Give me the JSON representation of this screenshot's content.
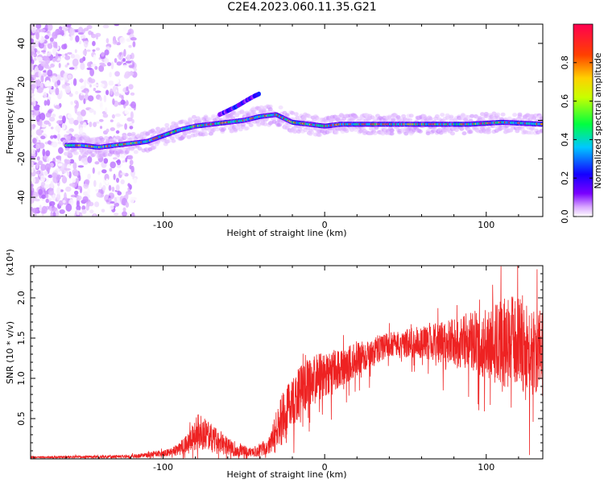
{
  "title": "C2E4.2023.060.11.35.G21",
  "chart_data": [
    {
      "type": "heatmap",
      "xlabel": "Height of straight line (km)",
      "ylabel": "Frequency (Hz)",
      "xlim": [
        -182,
        135
      ],
      "ylim": [
        -50,
        50
      ],
      "xticks": [
        -100,
        0,
        100
      ],
      "yticks": [
        -40,
        -20,
        0,
        20,
        40
      ],
      "colorbar": {
        "label": "Normalized spectral amplitude",
        "range": [
          0,
          1
        ],
        "ticks": [
          0.0,
          0.2,
          0.4,
          0.6,
          0.8
        ],
        "colors": [
          "#ffffff",
          "#d9a8ff",
          "#7a00ff",
          "#1400ff",
          "#00c8ff",
          "#00ff40",
          "#c8ff00",
          "#ffd000",
          "#ff4000",
          "#ff0050"
        ]
      },
      "trace": [
        {
          "x": -150,
          "y": -13
        },
        {
          "x": -140,
          "y": -14
        },
        {
          "x": -130,
          "y": -13
        },
        {
          "x": -120,
          "y": -12
        },
        {
          "x": -110,
          "y": -11
        },
        {
          "x": -100,
          "y": -8
        },
        {
          "x": -90,
          "y": -5
        },
        {
          "x": -80,
          "y": -3
        },
        {
          "x": -70,
          "y": -2
        },
        {
          "x": -60,
          "y": -1
        },
        {
          "x": -50,
          "y": 0
        },
        {
          "x": -40,
          "y": 2
        },
        {
          "x": -30,
          "y": 3
        },
        {
          "x": -20,
          "y": -1
        },
        {
          "x": -10,
          "y": -2
        },
        {
          "x": 0,
          "y": -3
        },
        {
          "x": 10,
          "y": -2
        },
        {
          "x": 30,
          "y": -2
        },
        {
          "x": 60,
          "y": -2
        },
        {
          "x": 90,
          "y": -2
        },
        {
          "x": 110,
          "y": -1
        },
        {
          "x": 135,
          "y": -2
        }
      ],
      "branch": [
        {
          "x": -65,
          "y": 3
        },
        {
          "x": -55,
          "y": 7
        },
        {
          "x": -45,
          "y": 12
        },
        {
          "x": -40,
          "y": 14
        }
      ]
    },
    {
      "type": "line",
      "xlabel": "Height of straight line (km)",
      "ylabel": "SNR (10 * v/v)",
      "yscale_label": "(x10⁴)",
      "xlim": [
        -182,
        135
      ],
      "ylim": [
        0,
        2.4
      ],
      "xticks": [
        -100,
        0,
        100
      ],
      "yticks": [
        0.5,
        1.0,
        1.5,
        2.0
      ],
      "color": "#ee2222",
      "envelope": [
        {
          "x": -182,
          "mean": 0.02,
          "spread": 0.01
        },
        {
          "x": -120,
          "mean": 0.03,
          "spread": 0.02
        },
        {
          "x": -95,
          "mean": 0.08,
          "spread": 0.05
        },
        {
          "x": -85,
          "mean": 0.18,
          "spread": 0.12
        },
        {
          "x": -78,
          "mean": 0.35,
          "spread": 0.25
        },
        {
          "x": -70,
          "mean": 0.25,
          "spread": 0.18
        },
        {
          "x": -60,
          "mean": 0.15,
          "spread": 0.12
        },
        {
          "x": -45,
          "mean": 0.08,
          "spread": 0.06
        },
        {
          "x": -35,
          "mean": 0.15,
          "spread": 0.1
        },
        {
          "x": -25,
          "mean": 0.55,
          "spread": 0.35
        },
        {
          "x": -15,
          "mean": 0.85,
          "spread": 0.3
        },
        {
          "x": -5,
          "mean": 1.0,
          "spread": 0.3
        },
        {
          "x": 10,
          "mean": 1.15,
          "spread": 0.25
        },
        {
          "x": 25,
          "mean": 1.3,
          "spread": 0.2
        },
        {
          "x": 40,
          "mean": 1.42,
          "spread": 0.15
        },
        {
          "x": 60,
          "mean": 1.45,
          "spread": 0.2
        },
        {
          "x": 80,
          "mean": 1.45,
          "spread": 0.3
        },
        {
          "x": 100,
          "mean": 1.45,
          "spread": 0.45
        },
        {
          "x": 115,
          "mean": 1.45,
          "spread": 0.6
        },
        {
          "x": 135,
          "mean": 1.3,
          "spread": 0.55
        }
      ]
    }
  ]
}
